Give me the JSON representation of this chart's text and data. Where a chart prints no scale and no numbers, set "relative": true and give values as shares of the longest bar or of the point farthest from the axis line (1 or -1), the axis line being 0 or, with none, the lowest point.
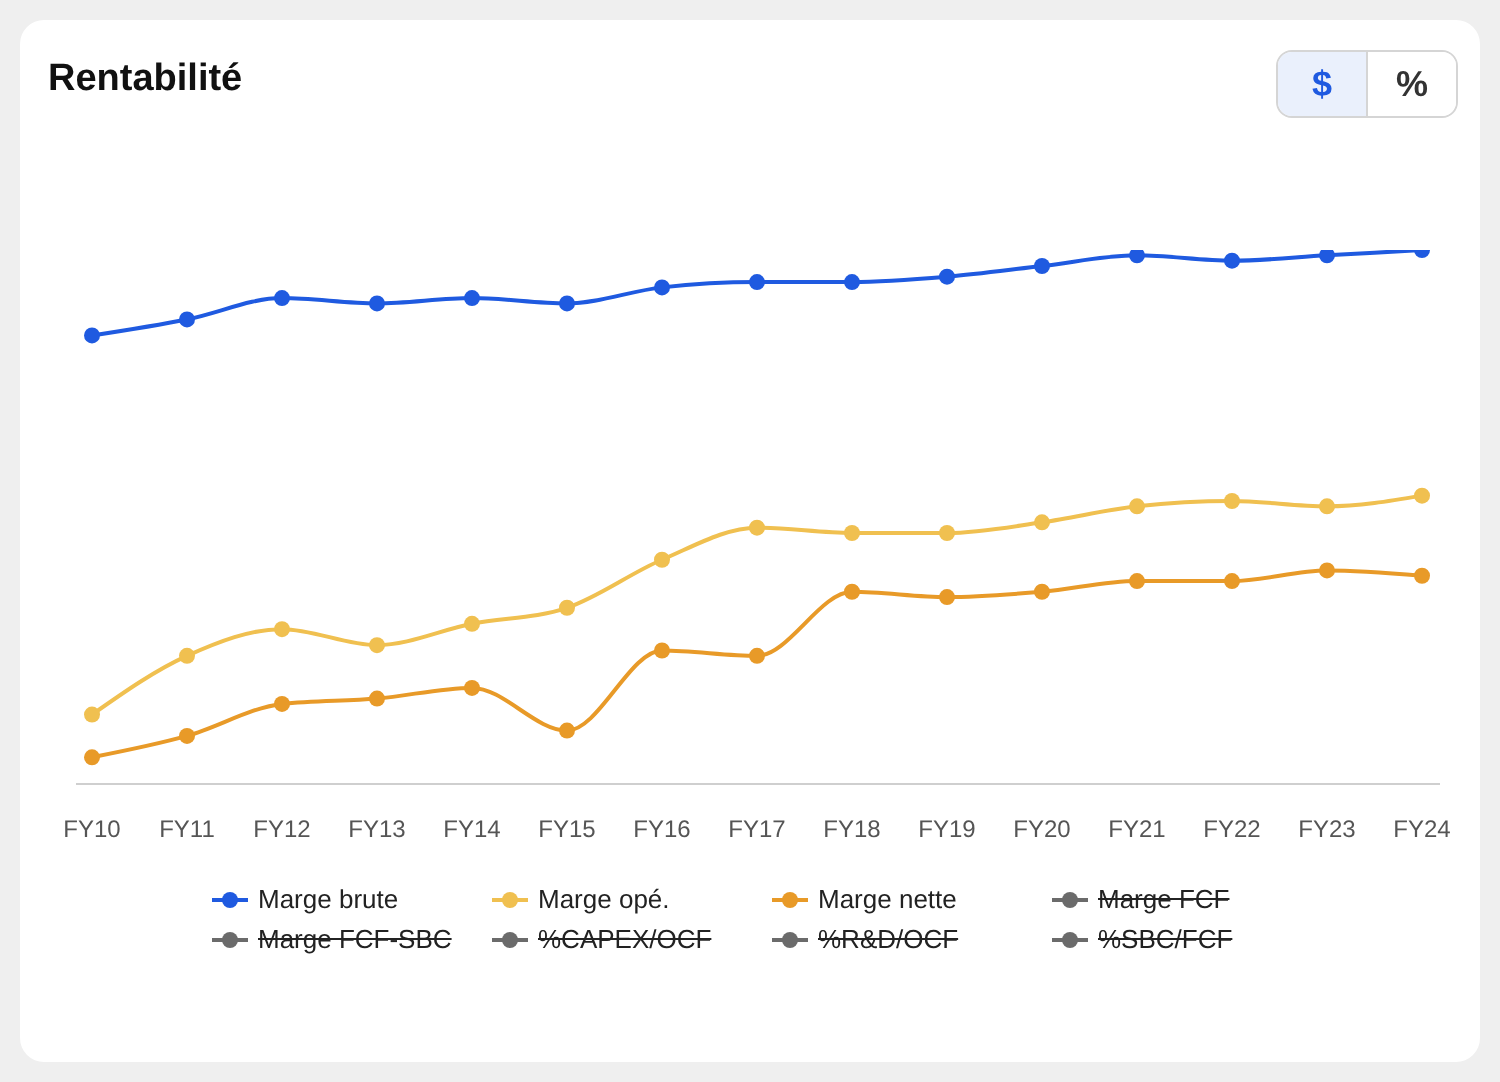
{
  "chart_data": {
    "type": "line",
    "title": "Rentabilité",
    "relative": true,
    "categories": [
      "FY10",
      "FY11",
      "FY12",
      "FY13",
      "FY14",
      "FY15",
      "FY16",
      "FY17",
      "FY18",
      "FY19",
      "FY20",
      "FY21",
      "FY22",
      "FY23",
      "FY24"
    ],
    "series": [
      {
        "name": "Marge brute",
        "color": "#1f5ae0",
        "values": [
          0.84,
          0.87,
          0.91,
          0.9,
          0.91,
          0.9,
          0.93,
          0.94,
          0.94,
          0.95,
          0.97,
          0.99,
          0.98,
          0.99,
          1
        ]
      },
      {
        "name": "Marge opé.",
        "color": "#f0c050",
        "values": [
          0.13,
          0.24,
          0.29,
          0.26,
          0.3,
          0.33,
          0.42,
          0.48,
          0.47,
          0.47,
          0.49,
          0.52,
          0.53,
          0.52,
          0.54
        ]
      },
      {
        "name": "Marge nette",
        "color": "#e89a28",
        "values": [
          0.05,
          0.09,
          0.15,
          0.16,
          0.18,
          0.1,
          0.25,
          0.24,
          0.36,
          0.35,
          0.36,
          0.38,
          0.38,
          0.4,
          0.39
        ]
      },
      {
        "name": "Marge FCF",
        "color": "#6b6b6b",
        "values": [
          null,
          null,
          null,
          null,
          null,
          null,
          null,
          null,
          null,
          null,
          null,
          null,
          null,
          null,
          null
        ]
      },
      {
        "name": "Marge FCF-SBC",
        "color": "#6b6b6b",
        "values": [
          null,
          null,
          null,
          null,
          null,
          null,
          null,
          null,
          null,
          null,
          null,
          null,
          null,
          null,
          null
        ]
      },
      {
        "name": "%CAPEX/OCF",
        "color": "#6b6b6b",
        "values": [
          null,
          null,
          null,
          null,
          null,
          null,
          null,
          null,
          null,
          null,
          null,
          null,
          null,
          null,
          null
        ]
      },
      {
        "name": "%R&D/OCF",
        "color": "#6b6b6b",
        "values": [
          null,
          null,
          null,
          null,
          null,
          null,
          null,
          null,
          null,
          null,
          null,
          null,
          null,
          null,
          null
        ]
      },
      {
        "name": "%SBC/FCF",
        "color": "#6b6b6b",
        "values": [
          null,
          null,
          null,
          null,
          null,
          null,
          null,
          null,
          null,
          null,
          null,
          null,
          null,
          null,
          null
        ]
      }
    ],
    "annotations": [
      "$",
      "%"
    ],
    "marker": "circle",
    "line_style": "solid",
    "grid": false,
    "legend": "bottom"
  }
}
